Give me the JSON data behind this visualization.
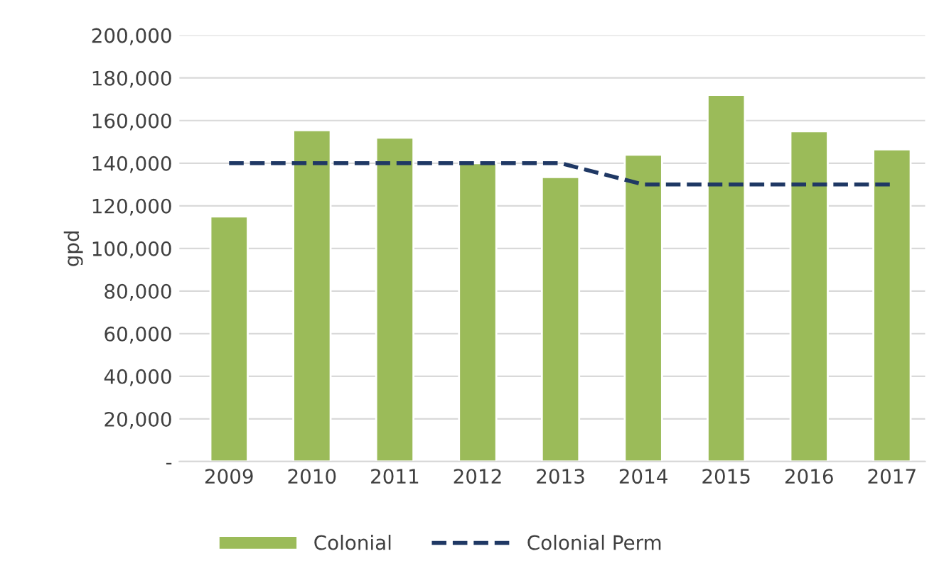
{
  "chart_data": {
    "type": "bar",
    "ylabel": "gpd",
    "categories": [
      "2009",
      "2010",
      "2011",
      "2012",
      "2013",
      "2014",
      "2015",
      "2016",
      "2017"
    ],
    "series": [
      {
        "name": "Colonial",
        "color": "#9bbb59",
        "values": [
          115000,
          155500,
          152000,
          140000,
          133500,
          144000,
          172000,
          155000,
          146500
        ]
      },
      {
        "name": "Colonial Perm",
        "type": "line",
        "color": "#1f3864",
        "line_style": "dashed",
        "values": [
          140000,
          140000,
          140000,
          140000,
          140000,
          130000,
          130000,
          130000,
          130000
        ]
      }
    ],
    "ylim": [
      0,
      200000
    ],
    "yticks": [
      {
        "value": 0,
        "label": "-"
      },
      {
        "value": 20000,
        "label": "20,000"
      },
      {
        "value": 40000,
        "label": "40,000"
      },
      {
        "value": 60000,
        "label": "60,000"
      },
      {
        "value": 80000,
        "label": "80,000"
      },
      {
        "value": 100000,
        "label": "100,000"
      },
      {
        "value": 120000,
        "label": "120,000"
      },
      {
        "value": 140000,
        "label": "140,000"
      },
      {
        "value": 160000,
        "label": "160,000"
      },
      {
        "value": 180000,
        "label": "180,000"
      },
      {
        "value": 200000,
        "label": "200,000"
      }
    ],
    "grid": "y",
    "legend": "bottom"
  }
}
